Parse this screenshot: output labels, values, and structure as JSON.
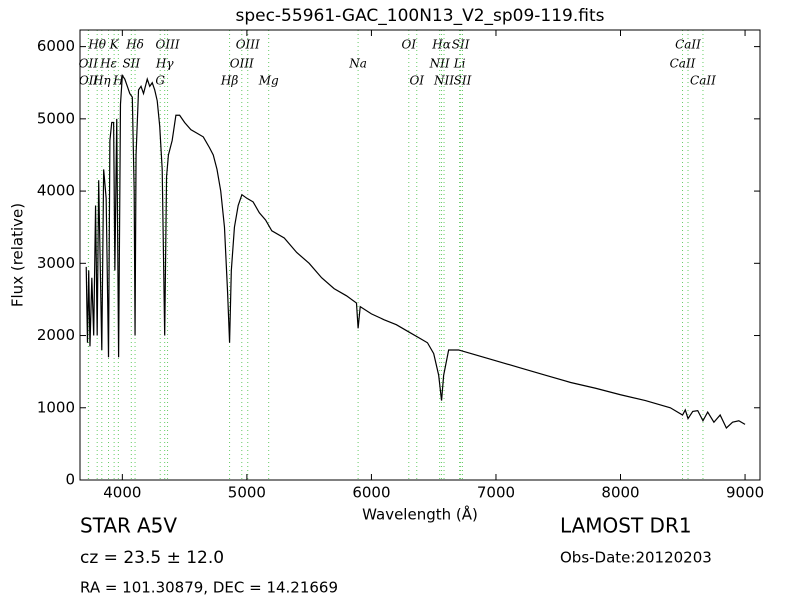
{
  "chart_data": {
    "type": "line",
    "title": "spec-55961-GAC_100N13_V2_sp09-119.fits",
    "xlabel": "Wavelength (Å)",
    "ylabel": "Flux (relative)",
    "xlim": [
      3660,
      9120
    ],
    "ylim": [
      0,
      6230
    ],
    "xticks": [
      4000,
      5000,
      6000,
      7000,
      8000,
      9000
    ],
    "yticks": [
      0,
      1000,
      2000,
      3000,
      4000,
      5000,
      6000
    ],
    "series": [
      {
        "color": "#000000",
        "x": [
          3710,
          3720,
          3730,
          3740,
          3755,
          3770,
          3785,
          3798,
          3810,
          3835,
          3850,
          3870,
          3889,
          3900,
          3915,
          3930,
          3940,
          3955,
          3970,
          3985,
          4000,
          4020,
          4040,
          4060,
          4080,
          4095,
          4102,
          4110,
          4130,
          4150,
          4170,
          4200,
          4220,
          4240,
          4260,
          4280,
          4300,
          4320,
          4340,
          4355,
          4370,
          4400,
          4430,
          4460,
          4500,
          4550,
          4600,
          4650,
          4700,
          4730,
          4760,
          4790,
          4820,
          4845,
          4861,
          4875,
          4900,
          4930,
          4960,
          5000,
          5050,
          5100,
          5150,
          5200,
          5300,
          5400,
          5500,
          5600,
          5700,
          5800,
          5880,
          5893,
          5910,
          6000,
          6100,
          6200,
          6300,
          6400,
          6450,
          6500,
          6540,
          6563,
          6580,
          6620,
          6700,
          6800,
          6900,
          7000,
          7200,
          7400,
          7600,
          7800,
          8000,
          8200,
          8400,
          8498,
          8520,
          8542,
          8580,
          8620,
          8662,
          8700,
          8750,
          8800,
          8850,
          8900,
          8950,
          9000
        ],
        "values": [
          2950,
          1900,
          2900,
          1850,
          2800,
          2000,
          3800,
          2000,
          4150,
          1800,
          4300,
          3900,
          1700,
          4700,
          4950,
          4950,
          2900,
          5000,
          1700,
          5200,
          5600,
          5550,
          5450,
          5350,
          5300,
          4000,
          2000,
          4500,
          5400,
          5450,
          5350,
          5550,
          5450,
          5500,
          5400,
          5250,
          4900,
          4300,
          2000,
          4200,
          4500,
          4700,
          5050,
          5050,
          4950,
          4850,
          4800,
          4750,
          4600,
          4500,
          4300,
          4000,
          3500,
          2600,
          1900,
          2900,
          3500,
          3800,
          3950,
          3900,
          3850,
          3700,
          3600,
          3450,
          3350,
          3150,
          3000,
          2800,
          2650,
          2550,
          2450,
          2100,
          2400,
          2300,
          2220,
          2150,
          2050,
          1950,
          1900,
          1750,
          1450,
          1100,
          1450,
          1800,
          1800,
          1750,
          1700,
          1650,
          1550,
          1450,
          1350,
          1270,
          1180,
          1100,
          1000,
          900,
          970,
          850,
          950,
          960,
          820,
          940,
          800,
          900,
          720,
          800,
          820,
          770
        ]
      }
    ],
    "line_color": "#66cc66",
    "spectral_lines": [
      [
        {
          "label": "Hθ",
          "wavelength": 3798
        },
        {
          "label": "K",
          "wavelength": 3934
        },
        {
          "label": "Hδ",
          "wavelength": 4102
        },
        {
          "label": "OIII",
          "wavelength": 4363
        },
        {
          "label": "OIII",
          "wavelength": 5007
        },
        {
          "label": "OI",
          "wavelength": 6300
        },
        {
          "label": "Hα",
          "wavelength": 6563
        },
        {
          "label": "SII",
          "wavelength": 6716
        },
        {
          "label": "CaII",
          "wavelength": 8542
        }
      ],
      [
        {
          "label": "OII",
          "wavelength": 3727
        },
        {
          "label": "Hε",
          "wavelength": 3889
        },
        {
          "label": "SII",
          "wavelength": 4072
        },
        {
          "label": "Hγ",
          "wavelength": 4340
        },
        {
          "label": "OIII",
          "wavelength": 4959
        },
        {
          "label": "Na",
          "wavelength": 5893
        },
        {
          "label": "NII",
          "wavelength": 6548
        },
        {
          "label": "Li",
          "wavelength": 6708
        },
        {
          "label": "CaII",
          "wavelength": 8498
        }
      ],
      [
        {
          "label": "OII",
          "wavelength": 3729
        },
        {
          "label": "Hη",
          "wavelength": 3835
        },
        {
          "label": "H",
          "wavelength": 3968
        },
        {
          "label": "G",
          "wavelength": 4304
        },
        {
          "label": "Hβ",
          "wavelength": 4861
        },
        {
          "label": "Mg",
          "wavelength": 5175
        },
        {
          "label": "OI",
          "wavelength": 6364
        },
        {
          "label": "NII",
          "wavelength": 6583
        },
        {
          "label": "SII",
          "wavelength": 6731
        },
        {
          "label": "CaII",
          "wavelength": 8662
        }
      ]
    ]
  },
  "info": {
    "class": "STAR",
    "subclass": "A5V",
    "cz": "cz = 23.5 ± 12.0",
    "coords": "RA = 101.30879, DEC = 14.21669",
    "survey": "LAMOST DR1",
    "obs_date": "Obs-Date:20120203"
  }
}
